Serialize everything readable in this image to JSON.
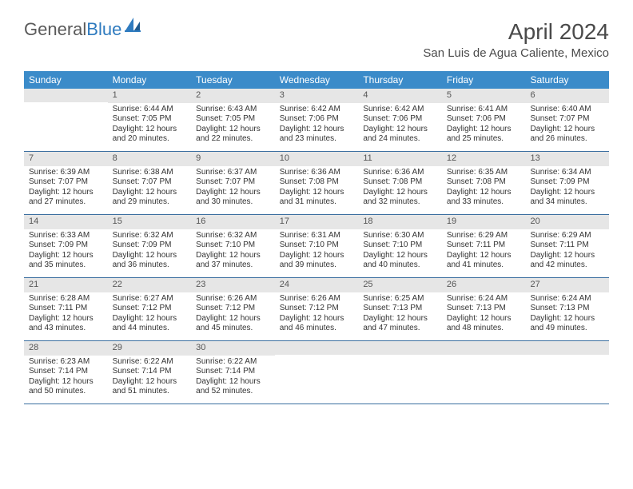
{
  "logo": {
    "text1": "General",
    "text2": "Blue"
  },
  "colors": {
    "header_bg": "#3b8bc9",
    "header_text": "#ffffff",
    "daynum_bg": "#e6e6e6",
    "row_border": "#3b6fa0",
    "logo_gray": "#5a5a5a",
    "logo_blue": "#2f7bbf"
  },
  "title": "April 2024",
  "location": "San Luis de Agua Caliente, Mexico",
  "dayNames": [
    "Sunday",
    "Monday",
    "Tuesday",
    "Wednesday",
    "Thursday",
    "Friday",
    "Saturday"
  ],
  "weeks": [
    [
      {
        "num": "",
        "lines": []
      },
      {
        "num": "1",
        "lines": [
          "Sunrise: 6:44 AM",
          "Sunset: 7:05 PM",
          "Daylight: 12 hours",
          "and 20 minutes."
        ]
      },
      {
        "num": "2",
        "lines": [
          "Sunrise: 6:43 AM",
          "Sunset: 7:05 PM",
          "Daylight: 12 hours",
          "and 22 minutes."
        ]
      },
      {
        "num": "3",
        "lines": [
          "Sunrise: 6:42 AM",
          "Sunset: 7:06 PM",
          "Daylight: 12 hours",
          "and 23 minutes."
        ]
      },
      {
        "num": "4",
        "lines": [
          "Sunrise: 6:42 AM",
          "Sunset: 7:06 PM",
          "Daylight: 12 hours",
          "and 24 minutes."
        ]
      },
      {
        "num": "5",
        "lines": [
          "Sunrise: 6:41 AM",
          "Sunset: 7:06 PM",
          "Daylight: 12 hours",
          "and 25 minutes."
        ]
      },
      {
        "num": "6",
        "lines": [
          "Sunrise: 6:40 AM",
          "Sunset: 7:07 PM",
          "Daylight: 12 hours",
          "and 26 minutes."
        ]
      }
    ],
    [
      {
        "num": "7",
        "lines": [
          "Sunrise: 6:39 AM",
          "Sunset: 7:07 PM",
          "Daylight: 12 hours",
          "and 27 minutes."
        ]
      },
      {
        "num": "8",
        "lines": [
          "Sunrise: 6:38 AM",
          "Sunset: 7:07 PM",
          "Daylight: 12 hours",
          "and 29 minutes."
        ]
      },
      {
        "num": "9",
        "lines": [
          "Sunrise: 6:37 AM",
          "Sunset: 7:07 PM",
          "Daylight: 12 hours",
          "and 30 minutes."
        ]
      },
      {
        "num": "10",
        "lines": [
          "Sunrise: 6:36 AM",
          "Sunset: 7:08 PM",
          "Daylight: 12 hours",
          "and 31 minutes."
        ]
      },
      {
        "num": "11",
        "lines": [
          "Sunrise: 6:36 AM",
          "Sunset: 7:08 PM",
          "Daylight: 12 hours",
          "and 32 minutes."
        ]
      },
      {
        "num": "12",
        "lines": [
          "Sunrise: 6:35 AM",
          "Sunset: 7:08 PM",
          "Daylight: 12 hours",
          "and 33 minutes."
        ]
      },
      {
        "num": "13",
        "lines": [
          "Sunrise: 6:34 AM",
          "Sunset: 7:09 PM",
          "Daylight: 12 hours",
          "and 34 minutes."
        ]
      }
    ],
    [
      {
        "num": "14",
        "lines": [
          "Sunrise: 6:33 AM",
          "Sunset: 7:09 PM",
          "Daylight: 12 hours",
          "and 35 minutes."
        ]
      },
      {
        "num": "15",
        "lines": [
          "Sunrise: 6:32 AM",
          "Sunset: 7:09 PM",
          "Daylight: 12 hours",
          "and 36 minutes."
        ]
      },
      {
        "num": "16",
        "lines": [
          "Sunrise: 6:32 AM",
          "Sunset: 7:10 PM",
          "Daylight: 12 hours",
          "and 37 minutes."
        ]
      },
      {
        "num": "17",
        "lines": [
          "Sunrise: 6:31 AM",
          "Sunset: 7:10 PM",
          "Daylight: 12 hours",
          "and 39 minutes."
        ]
      },
      {
        "num": "18",
        "lines": [
          "Sunrise: 6:30 AM",
          "Sunset: 7:10 PM",
          "Daylight: 12 hours",
          "and 40 minutes."
        ]
      },
      {
        "num": "19",
        "lines": [
          "Sunrise: 6:29 AM",
          "Sunset: 7:11 PM",
          "Daylight: 12 hours",
          "and 41 minutes."
        ]
      },
      {
        "num": "20",
        "lines": [
          "Sunrise: 6:29 AM",
          "Sunset: 7:11 PM",
          "Daylight: 12 hours",
          "and 42 minutes."
        ]
      }
    ],
    [
      {
        "num": "21",
        "lines": [
          "Sunrise: 6:28 AM",
          "Sunset: 7:11 PM",
          "Daylight: 12 hours",
          "and 43 minutes."
        ]
      },
      {
        "num": "22",
        "lines": [
          "Sunrise: 6:27 AM",
          "Sunset: 7:12 PM",
          "Daylight: 12 hours",
          "and 44 minutes."
        ]
      },
      {
        "num": "23",
        "lines": [
          "Sunrise: 6:26 AM",
          "Sunset: 7:12 PM",
          "Daylight: 12 hours",
          "and 45 minutes."
        ]
      },
      {
        "num": "24",
        "lines": [
          "Sunrise: 6:26 AM",
          "Sunset: 7:12 PM",
          "Daylight: 12 hours",
          "and 46 minutes."
        ]
      },
      {
        "num": "25",
        "lines": [
          "Sunrise: 6:25 AM",
          "Sunset: 7:13 PM",
          "Daylight: 12 hours",
          "and 47 minutes."
        ]
      },
      {
        "num": "26",
        "lines": [
          "Sunrise: 6:24 AM",
          "Sunset: 7:13 PM",
          "Daylight: 12 hours",
          "and 48 minutes."
        ]
      },
      {
        "num": "27",
        "lines": [
          "Sunrise: 6:24 AM",
          "Sunset: 7:13 PM",
          "Daylight: 12 hours",
          "and 49 minutes."
        ]
      }
    ],
    [
      {
        "num": "28",
        "lines": [
          "Sunrise: 6:23 AM",
          "Sunset: 7:14 PM",
          "Daylight: 12 hours",
          "and 50 minutes."
        ]
      },
      {
        "num": "29",
        "lines": [
          "Sunrise: 6:22 AM",
          "Sunset: 7:14 PM",
          "Daylight: 12 hours",
          "and 51 minutes."
        ]
      },
      {
        "num": "30",
        "lines": [
          "Sunrise: 6:22 AM",
          "Sunset: 7:14 PM",
          "Daylight: 12 hours",
          "and 52 minutes."
        ]
      },
      {
        "num": "",
        "lines": []
      },
      {
        "num": "",
        "lines": []
      },
      {
        "num": "",
        "lines": []
      },
      {
        "num": "",
        "lines": []
      }
    ]
  ]
}
